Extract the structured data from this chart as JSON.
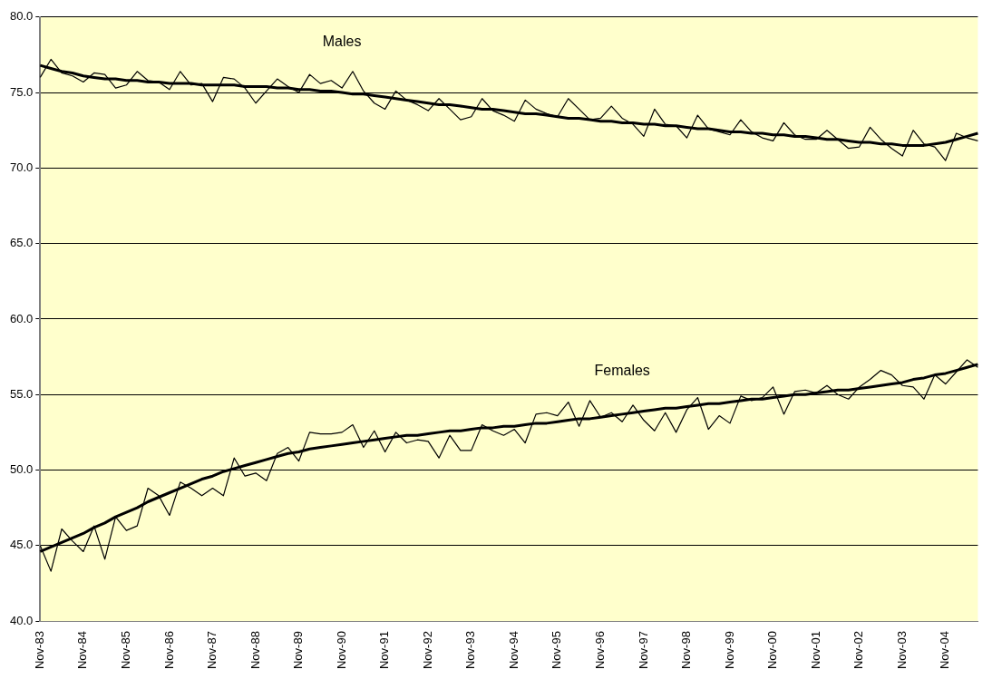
{
  "chart_data": {
    "type": "line",
    "categories": [
      "Nov-83",
      null,
      null,
      null,
      "Nov-84",
      null,
      null,
      null,
      "Nov-85",
      null,
      null,
      null,
      "Nov-86",
      null,
      null,
      null,
      "Nov-87",
      null,
      null,
      null,
      "Nov-88",
      null,
      null,
      null,
      "Nov-89",
      null,
      null,
      null,
      "Nov-90",
      null,
      null,
      null,
      "Nov-91",
      null,
      null,
      null,
      "Nov-92",
      null,
      null,
      null,
      "Nov-93",
      null,
      null,
      null,
      "Nov-94",
      null,
      null,
      null,
      "Nov-95",
      null,
      null,
      null,
      "Nov-96",
      null,
      null,
      null,
      "Nov-97",
      null,
      null,
      null,
      "Nov-98",
      null,
      null,
      null,
      "Nov-99",
      null,
      null,
      null,
      "Nov-00",
      null,
      null,
      null,
      "Nov-01",
      null,
      null,
      null,
      "Nov-02",
      null,
      null,
      null,
      "Nov-03",
      null,
      null,
      null,
      "Nov-04",
      null,
      null,
      null
    ],
    "series": [
      {
        "name": "Males",
        "color": "#000000",
        "values": [
          76.0,
          77.2,
          76.3,
          76.1,
          75.7,
          76.3,
          76.2,
          75.3,
          75.5,
          76.4,
          75.8,
          75.7,
          75.2,
          76.4,
          75.5,
          75.6,
          74.4,
          76.0,
          75.9,
          75.3,
          74.3,
          75.1,
          75.9,
          75.4,
          75.0,
          76.2,
          75.6,
          75.8,
          75.3,
          76.4,
          75.1,
          74.3,
          73.9,
          75.1,
          74.5,
          74.2,
          73.8,
          74.6,
          73.9,
          73.2,
          73.4,
          74.6,
          73.8,
          73.5,
          73.1,
          74.5,
          73.9,
          73.6,
          73.4,
          74.6,
          73.9,
          73.2,
          73.3,
          74.1,
          73.3,
          72.9,
          72.1,
          73.9,
          72.9,
          72.8,
          72.0,
          73.5,
          72.6,
          72.4,
          72.2,
          73.2,
          72.4,
          72.0,
          71.8,
          73.0,
          72.2,
          71.9,
          71.9,
          72.5,
          71.9,
          71.3,
          71.4,
          72.7,
          71.9,
          71.3,
          70.8,
          72.5,
          71.6,
          71.4,
          70.5,
          72.3,
          72.0,
          71.8
        ]
      },
      {
        "type": "line",
        "color": "#000000",
        "values": [
          76.8,
          76.6,
          76.4,
          76.3,
          76.1,
          76.0,
          75.9,
          75.9,
          75.8,
          75.8,
          75.7,
          75.7,
          75.6,
          75.6,
          75.6,
          75.5,
          75.5,
          75.5,
          75.5,
          75.4,
          75.4,
          75.4,
          75.3,
          75.3,
          75.2,
          75.2,
          75.1,
          75.1,
          75.0,
          74.9,
          74.9,
          74.8,
          74.7,
          74.6,
          74.5,
          74.4,
          74.3,
          74.2,
          74.2,
          74.1,
          74.0,
          73.9,
          73.9,
          73.8,
          73.7,
          73.6,
          73.6,
          73.5,
          73.4,
          73.3,
          73.3,
          73.2,
          73.1,
          73.1,
          73.0,
          73.0,
          72.9,
          72.9,
          72.8,
          72.8,
          72.7,
          72.6,
          72.6,
          72.5,
          72.4,
          72.4,
          72.3,
          72.3,
          72.2,
          72.2,
          72.1,
          72.1,
          72.0,
          71.9,
          71.9,
          71.8,
          71.7,
          71.7,
          71.6,
          71.6,
          71.5,
          71.5,
          71.5,
          71.6,
          71.7,
          71.9,
          72.1,
          72.3
        ]
      },
      {
        "name": "Females",
        "color": "#000000",
        "values": [
          45.0,
          43.3,
          46.1,
          45.3,
          44.6,
          46.3,
          44.1,
          46.9,
          46.0,
          46.3,
          48.8,
          48.3,
          47.0,
          49.2,
          48.8,
          48.3,
          48.8,
          48.3,
          50.8,
          49.6,
          49.8,
          49.3,
          51.1,
          51.5,
          50.6,
          52.5,
          52.4,
          52.4,
          52.5,
          53.0,
          51.5,
          52.6,
          51.2,
          52.5,
          51.8,
          52.0,
          51.9,
          50.8,
          52.3,
          51.3,
          51.3,
          53.0,
          52.6,
          52.3,
          52.7,
          51.8,
          53.7,
          53.8,
          53.6,
          54.5,
          52.9,
          54.6,
          53.5,
          53.8,
          53.2,
          54.3,
          53.3,
          52.6,
          53.8,
          52.5,
          54.0,
          54.8,
          52.7,
          53.6,
          53.1,
          54.9,
          54.6,
          54.8,
          55.5,
          53.7,
          55.2,
          55.3,
          55.1,
          55.6,
          55.0,
          54.7,
          55.5,
          56.0,
          56.6,
          56.3,
          55.6,
          55.5,
          54.7,
          56.3,
          55.7,
          56.5,
          57.3,
          56.8
        ]
      },
      {
        "type": "line",
        "color": "#000000",
        "values": [
          44.6,
          44.9,
          45.2,
          45.5,
          45.8,
          46.2,
          46.5,
          46.9,
          47.2,
          47.5,
          47.9,
          48.2,
          48.5,
          48.8,
          49.1,
          49.4,
          49.6,
          49.9,
          50.1,
          50.3,
          50.5,
          50.7,
          50.9,
          51.1,
          51.2,
          51.4,
          51.5,
          51.6,
          51.7,
          51.8,
          51.9,
          52.0,
          52.1,
          52.2,
          52.3,
          52.3,
          52.4,
          52.5,
          52.6,
          52.6,
          52.7,
          52.8,
          52.8,
          52.9,
          52.9,
          53.0,
          53.1,
          53.1,
          53.2,
          53.3,
          53.4,
          53.4,
          53.5,
          53.6,
          53.7,
          53.8,
          53.9,
          54.0,
          54.1,
          54.1,
          54.2,
          54.3,
          54.4,
          54.4,
          54.5,
          54.6,
          54.7,
          54.7,
          54.8,
          54.9,
          55.0,
          55.0,
          55.1,
          55.2,
          55.3,
          55.3,
          55.4,
          55.5,
          55.6,
          55.7,
          55.8,
          56.0,
          56.1,
          56.3,
          56.4,
          56.6,
          56.8,
          57.0
        ]
      }
    ],
    "ylim": [
      40,
      80
    ],
    "yticks": [
      {
        "value": 40,
        "label": "40.0"
      },
      {
        "value": 45,
        "label": "45.0"
      },
      {
        "value": 50,
        "label": "50.0"
      },
      {
        "value": 55,
        "label": "55.0"
      },
      {
        "value": 60,
        "label": "60.0"
      },
      {
        "value": 65,
        "label": "65.0"
      },
      {
        "value": 70,
        "label": "70.0"
      },
      {
        "value": 75,
        "label": "75.0"
      },
      {
        "value": 80,
        "label": "80.0"
      }
    ],
    "grid": "y",
    "legend": false,
    "marker": "none",
    "line_style": "solid"
  }
}
